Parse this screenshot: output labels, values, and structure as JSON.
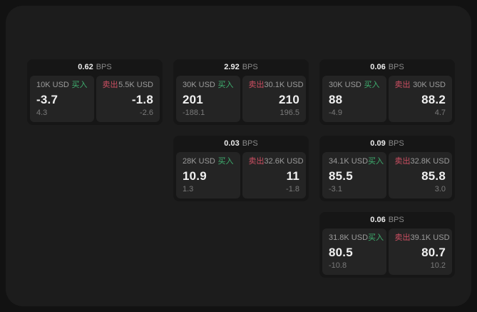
{
  "colors": {
    "page_bg": "#121212",
    "panel_bg": "#1c1c1c",
    "card_bg": "#161616",
    "subcard_bg": "#242424",
    "buy_green": "#3faf6f",
    "sell_red": "#cd4f62",
    "primary_text": "#f0f0f0",
    "muted_text": "#9b9b9b",
    "dim_text": "#7a7a7a"
  },
  "labels": {
    "buy": "买入",
    "sell": "卖出",
    "bps_unit": "BPS"
  },
  "cards": [
    {
      "bps": "0.62",
      "buy": {
        "size": "10K USD",
        "price": "-3.7",
        "change": "4.3"
      },
      "sell": {
        "size": "5.5K USD",
        "price": "-1.8",
        "change": "-2.6"
      }
    },
    {
      "bps": "2.92",
      "buy": {
        "size": "30K USD",
        "price": "201",
        "change": "-188.1"
      },
      "sell": {
        "size": "30.1K USD",
        "price": "210",
        "change": "196.5"
      }
    },
    {
      "bps": "0.06",
      "buy": {
        "size": "30K USD",
        "price": "88",
        "change": "-4.9"
      },
      "sell": {
        "size": "30K USD",
        "price": "88.2",
        "change": "4.7"
      }
    },
    {
      "bps": "0.03",
      "buy": {
        "size": "28K USD",
        "price": "10.9",
        "change": "1.3"
      },
      "sell": {
        "size": "32.6K USD",
        "price": "11",
        "change": "-1.8"
      }
    },
    {
      "bps": "0.09",
      "buy": {
        "size": "34.1K USD",
        "price": "85.5",
        "change": "-3.1"
      },
      "sell": {
        "size": "32.8K USD",
        "price": "85.8",
        "change": "3.0"
      }
    },
    {
      "bps": "0.06",
      "buy": {
        "size": "31.8K USD",
        "price": "80.5",
        "change": "-10.8"
      },
      "sell": {
        "size": "39.1K USD",
        "price": "80.7",
        "change": "10.2"
      }
    }
  ]
}
